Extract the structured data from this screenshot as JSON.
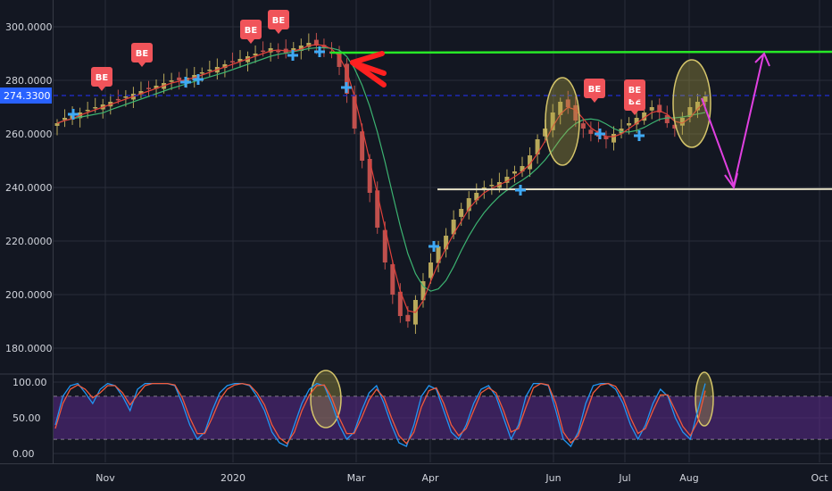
{
  "chart_data": [
    {
      "type": "candlestick",
      "title": "",
      "ylim": [
        172,
        305
      ],
      "yticks": [
        "300.0000",
        "280.0000",
        "260.0000",
        "240.0000",
        "220.0000",
        "200.0000",
        "180.0000"
      ],
      "ytick_values": [
        300,
        280,
        260,
        240,
        220,
        200,
        180
      ],
      "xlabels": [
        "Nov",
        "2020",
        "Mar",
        "Apr",
        "Jun",
        "Jul",
        "Aug",
        "Oct"
      ],
      "price_tag": {
        "label": "274.3300",
        "value": 274.33,
        "color": "#2962ff"
      },
      "levels": [
        {
          "name": "resistance",
          "value": 290.5,
          "color": "#27e827"
        },
        {
          "name": "support",
          "value": 239.3,
          "color": "#e8e3c8"
        },
        {
          "name": "current-price",
          "value": 274.33,
          "color": "#1f2ab8"
        }
      ],
      "series_close": [
        264,
        266,
        267,
        268,
        269,
        270,
        271,
        272,
        273,
        274,
        275,
        276,
        277,
        278,
        279,
        280,
        280,
        281,
        282,
        283,
        284,
        285,
        286,
        287,
        288,
        289,
        290,
        291,
        292,
        291,
        290,
        292,
        293,
        294,
        293,
        292,
        290,
        285,
        275,
        262,
        250,
        238,
        225,
        212,
        200,
        192,
        190,
        198,
        205,
        212,
        218,
        222,
        228,
        232,
        236,
        238,
        240,
        241,
        242,
        244,
        246,
        248,
        252,
        258,
        262,
        268,
        272,
        270,
        265,
        262,
        260,
        259,
        258,
        260,
        262,
        264,
        266,
        268,
        270,
        268,
        264,
        262,
        266,
        270,
        272,
        274
      ]
    },
    {
      "type": "line",
      "name": "stochastic",
      "ylim": [
        -5,
        105
      ],
      "yticks": [
        "100.00",
        "50.00",
        "0.00"
      ],
      "ytick_values": [
        100,
        50,
        0
      ],
      "band": [
        20,
        80
      ],
      "k_values": [
        40,
        80,
        95,
        98,
        85,
        70,
        90,
        98,
        95,
        80,
        60,
        90,
        98,
        98,
        98,
        98,
        95,
        70,
        40,
        20,
        30,
        60,
        85,
        95,
        98,
        98,
        95,
        80,
        60,
        30,
        15,
        10,
        40,
        70,
        90,
        98,
        95,
        70,
        40,
        20,
        30,
        60,
        85,
        95,
        70,
        40,
        15,
        10,
        40,
        80,
        95,
        90,
        60,
        30,
        20,
        40,
        70,
        90,
        95,
        80,
        50,
        20,
        40,
        80,
        98,
        98,
        95,
        60,
        20,
        10,
        30,
        70,
        95,
        98,
        98,
        90,
        70,
        40,
        20,
        40,
        70,
        90,
        80,
        50,
        30,
        20,
        60,
        98
      ],
      "d_values": [
        35,
        70,
        90,
        96,
        90,
        78,
        85,
        95,
        95,
        85,
        68,
        82,
        95,
        98,
        98,
        98,
        96,
        78,
        50,
        28,
        28,
        50,
        75,
        90,
        96,
        98,
        96,
        85,
        68,
        40,
        22,
        14,
        30,
        60,
        82,
        95,
        96,
        78,
        50,
        28,
        28,
        50,
        75,
        90,
        78,
        50,
        25,
        14,
        30,
        65,
        88,
        92,
        70,
        40,
        25,
        35,
        60,
        85,
        92,
        85,
        60,
        30,
        35,
        65,
        92,
        98,
        96,
        70,
        30,
        15,
        25,
        55,
        85,
        96,
        98,
        94,
        78,
        50,
        28,
        35,
        60,
        82,
        82,
        60,
        38,
        25,
        45,
        88
      ]
    }
  ],
  "annotations": {
    "be_labels": [
      "BE",
      "BE",
      "BE",
      "BE",
      "BE",
      "BE",
      "BE"
    ]
  }
}
